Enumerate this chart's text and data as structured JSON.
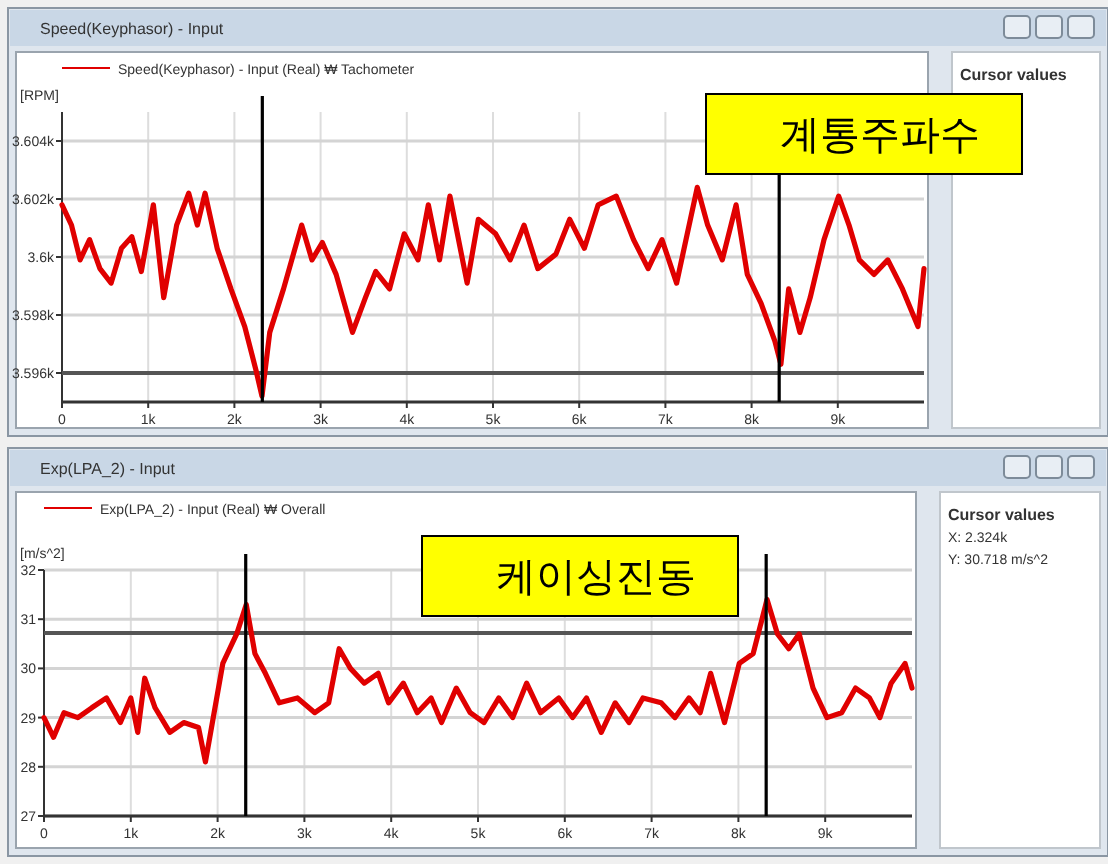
{
  "chart_data": [
    {
      "type": "line",
      "title": "Speed(Keyphasor) - Input",
      "ylabel": "[RPM]",
      "legend": "top left",
      "grid": true,
      "line_style": "solid",
      "x": [
        0,
        110,
        210,
        320,
        440,
        570,
        690,
        810,
        920,
        1060,
        1180,
        1330,
        1470,
        1570,
        1660,
        1800,
        1960,
        2120,
        2250,
        2320,
        2410,
        2570,
        2780,
        2900,
        3020,
        3180,
        3370,
        3520,
        3640,
        3800,
        3970,
        4130,
        4250,
        4380,
        4500,
        4700,
        4830,
        5030,
        5200,
        5360,
        5520,
        5730,
        5890,
        6060,
        6220,
        6430,
        6630,
        6800,
        6960,
        7130,
        7370,
        7490,
        7660,
        7820,
        7950,
        8110,
        8270,
        8340,
        8430,
        8560,
        8680,
        8840,
        9010,
        9130,
        9250,
        9420,
        9580,
        9750,
        9930,
        10000
      ],
      "series": [
        {
          "name": "Speed(Keyphasor) - Input (Real) ₩ Tachometer",
          "color": "#e00000",
          "values": [
            3601.8,
            3601.1,
            3599.9,
            3600.6,
            3599.6,
            3599.1,
            3600.3,
            3600.7,
            3599.5,
            3601.8,
            3598.6,
            3601.1,
            3602.2,
            3601.1,
            3602.2,
            3600.3,
            3598.9,
            3597.6,
            3596.1,
            3595.2,
            3597.4,
            3598.9,
            3601.1,
            3599.9,
            3600.5,
            3599.4,
            3597.4,
            3598.6,
            3599.5,
            3598.9,
            3600.8,
            3599.9,
            3601.8,
            3599.9,
            3602.1,
            3599.1,
            3601.3,
            3600.8,
            3599.9,
            3601.1,
            3599.6,
            3600.1,
            3601.3,
            3600.3,
            3601.8,
            3602.1,
            3600.6,
            3599.6,
            3600.6,
            3599.1,
            3602.4,
            3601.1,
            3599.9,
            3601.8,
            3599.4,
            3598.4,
            3597.1,
            3596.3,
            3598.9,
            3597.4,
            3598.6,
            3600.6,
            3602.1,
            3601.1,
            3599.9,
            3599.4,
            3599.9,
            3598.9,
            3597.6,
            3599.6
          ]
        }
      ],
      "xlim": [
        0,
        10000
      ],
      "xticks": [
        0,
        {
          "value": 1000,
          "label": "1k"
        },
        {
          "value": 2000,
          "label": "2k"
        },
        {
          "value": 3000,
          "label": "3k"
        },
        {
          "value": 4000,
          "label": "4k"
        },
        {
          "value": 5000,
          "label": "5k"
        },
        {
          "value": 6000,
          "label": "6k"
        },
        {
          "value": 7000,
          "label": "7k"
        },
        {
          "value": 8000,
          "label": "8k"
        },
        {
          "value": 9000,
          "label": "9k"
        }
      ],
      "ylim": [
        3595,
        3605
      ],
      "yticks": [
        {
          "value": 3596,
          "label": "3.596k"
        },
        {
          "value": 3598,
          "label": "3.598k"
        },
        {
          "value": 3600,
          "label": "3.6k"
        },
        {
          "value": 3602,
          "label": "3.602k"
        },
        {
          "value": 3604,
          "label": "3.604k"
        }
      ],
      "ref_lines": [
        {
          "axis": "y",
          "value": 3596,
          "color": "#555555"
        },
        {
          "axis": "x",
          "value": 2324,
          "color": "#000000"
        },
        {
          "axis": "x",
          "value": 8320,
          "color": "#000000"
        }
      ],
      "annotations": [
        "계통주파수",
        "Cursor values"
      ]
    },
    {
      "type": "line",
      "title": "Exp(LPA_2) - Input",
      "ylabel": "[m/s^2]",
      "legend": "top left",
      "grid": true,
      "line_style": "solid",
      "x": [
        0,
        110,
        230,
        390,
        550,
        720,
        880,
        1000,
        1080,
        1160,
        1280,
        1450,
        1610,
        1780,
        1860,
        1940,
        2060,
        2220,
        2330,
        2430,
        2550,
        2710,
        2920,
        3120,
        3280,
        3400,
        3530,
        3690,
        3850,
        3970,
        4140,
        4300,
        4460,
        4580,
        4750,
        4910,
        5070,
        5240,
        5400,
        5560,
        5720,
        5930,
        6090,
        6250,
        6420,
        6580,
        6740,
        6900,
        7110,
        7270,
        7430,
        7560,
        7680,
        7840,
        8010,
        8170,
        8330,
        8450,
        8580,
        8700,
        8860,
        9020,
        9190,
        9350,
        9510,
        9630,
        9760,
        9920,
        10000
      ],
      "series": [
        {
          "name": "Exp(LPA_2) - Input (Real) ₩ Overall",
          "color": "#e00000",
          "values": [
            29.0,
            28.6,
            29.1,
            29.0,
            29.2,
            29.4,
            28.9,
            29.4,
            28.7,
            29.8,
            29.2,
            28.7,
            28.9,
            28.8,
            28.1,
            28.9,
            30.1,
            30.7,
            31.3,
            30.3,
            29.9,
            29.3,
            29.4,
            29.1,
            29.3,
            30.4,
            30.0,
            29.7,
            29.9,
            29.3,
            29.7,
            29.1,
            29.4,
            28.9,
            29.6,
            29.1,
            28.9,
            29.4,
            29.0,
            29.7,
            29.1,
            29.4,
            29.0,
            29.4,
            28.7,
            29.3,
            28.9,
            29.4,
            29.3,
            29.0,
            29.4,
            29.1,
            29.9,
            28.9,
            30.1,
            30.3,
            31.4,
            30.7,
            30.4,
            30.7,
            29.6,
            29.0,
            29.1,
            29.6,
            29.4,
            29.0,
            29.7,
            30.1,
            29.6
          ]
        }
      ],
      "xlim": [
        0,
        10000
      ],
      "xticks": [
        0,
        {
          "value": 1000,
          "label": "1k"
        },
        {
          "value": 2000,
          "label": "2k"
        },
        {
          "value": 3000,
          "label": "3k"
        },
        {
          "value": 4000,
          "label": "4k"
        },
        {
          "value": 5000,
          "label": "5k"
        },
        {
          "value": 6000,
          "label": "6k"
        },
        {
          "value": 7000,
          "label": "7k"
        },
        {
          "value": 8000,
          "label": "8k"
        },
        {
          "value": 9000,
          "label": "9k"
        }
      ],
      "ylim": [
        27,
        32
      ],
      "yticks": [
        27,
        28,
        29,
        30,
        31,
        32
      ],
      "ref_lines": [
        {
          "axis": "y",
          "value": 30.718,
          "color": "#555555"
        },
        {
          "axis": "x",
          "value": 2324,
          "color": "#000000"
        },
        {
          "axis": "x",
          "value": 8320,
          "color": "#000000"
        }
      ],
      "annotations": [
        "케이싱진동",
        "Cursor values",
        "X: 2.324k",
        "Y: 30.718 m/s^2"
      ]
    }
  ]
}
